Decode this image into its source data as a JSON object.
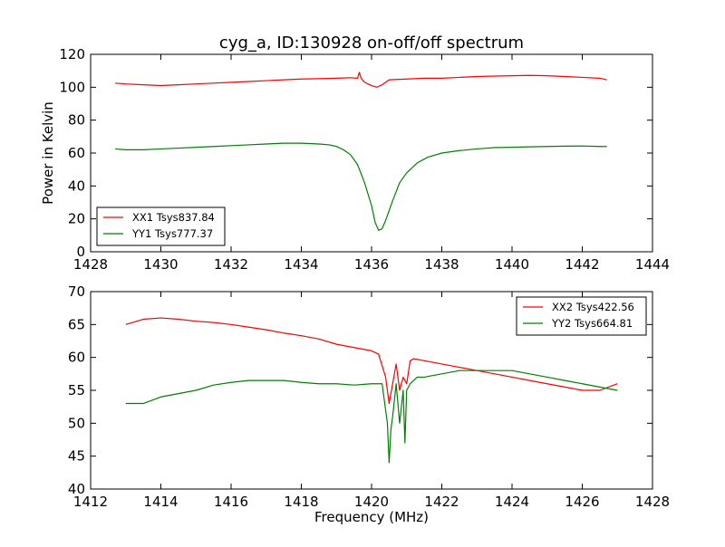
{
  "figure": {
    "title": "cyg_a, ID:130928 on-off/off spectrum",
    "background": "#ffffff"
  },
  "chart_data": [
    {
      "type": "line",
      "title": "cyg_a, ID:130928 on-off/off spectrum",
      "xlabel": "",
      "ylabel": "Power in Kelvin",
      "xlim": [
        1428,
        1444
      ],
      "ylim": [
        0,
        120
      ],
      "xticks": [
        1428,
        1430,
        1432,
        1434,
        1436,
        1438,
        1440,
        1442,
        1444
      ],
      "yticks": [
        0,
        20,
        40,
        60,
        80,
        100,
        120
      ],
      "grid": false,
      "legend_position": "lower-left",
      "series": [
        {
          "name": "XX1 Tsys837.84",
          "color": "#ff0000",
          "x": [
            1428.7,
            1429.0,
            1429.5,
            1430.0,
            1430.5,
            1431.0,
            1431.5,
            1432.0,
            1432.5,
            1433.0,
            1433.5,
            1434.0,
            1434.5,
            1435.0,
            1435.4,
            1435.6,
            1435.65,
            1435.7,
            1435.8,
            1436.0,
            1436.15,
            1436.3,
            1436.5,
            1437.0,
            1437.5,
            1438.0,
            1438.5,
            1439.0,
            1439.5,
            1440.0,
            1440.5,
            1441.0,
            1441.5,
            1442.0,
            1442.5,
            1442.7
          ],
          "y": [
            102.5,
            102,
            101.5,
            101,
            101.5,
            102,
            102.5,
            103,
            103.5,
            104,
            104.5,
            105,
            105.2,
            105.5,
            105.8,
            105.5,
            109,
            105.5,
            103,
            101,
            100,
            101.5,
            104.5,
            105,
            105.5,
            105.5,
            106,
            106.5,
            106.8,
            107,
            107.2,
            107,
            106.5,
            106,
            105.5,
            104.5
          ]
        },
        {
          "name": "YY1 Tsys777.37",
          "color": "#008000",
          "x": [
            1428.7,
            1429.0,
            1429.5,
            1430.0,
            1430.5,
            1431.0,
            1431.5,
            1432.0,
            1432.5,
            1433.0,
            1433.5,
            1434.0,
            1434.5,
            1434.8,
            1435.0,
            1435.2,
            1435.4,
            1435.6,
            1435.8,
            1436.0,
            1436.1,
            1436.2,
            1436.3,
            1436.4,
            1436.6,
            1436.8,
            1437.0,
            1437.3,
            1437.6,
            1438.0,
            1438.5,
            1439.0,
            1439.3,
            1439.5,
            1440.0,
            1440.5,
            1441.0,
            1441.5,
            1442.0,
            1442.5,
            1442.7
          ],
          "y": [
            62.5,
            62,
            62,
            62.5,
            63,
            63.5,
            64,
            64.5,
            65,
            65.5,
            66,
            66,
            65.5,
            65,
            64,
            62,
            59,
            53,
            42,
            28,
            18,
            13,
            14,
            19,
            31,
            42,
            48,
            54,
            57.5,
            60,
            61.5,
            62.5,
            63,
            63.3,
            63.5,
            63.8,
            64,
            64.2,
            64.3,
            64,
            64
          ]
        }
      ]
    },
    {
      "type": "line",
      "title": "",
      "xlabel": "Frequency (MHz)",
      "ylabel": "",
      "xlim": [
        1412,
        1428
      ],
      "ylim": [
        40,
        70
      ],
      "xticks": [
        1412,
        1414,
        1416,
        1418,
        1420,
        1422,
        1424,
        1426,
        1428
      ],
      "yticks": [
        40,
        45,
        50,
        55,
        60,
        65,
        70
      ],
      "grid": false,
      "legend_position": "upper-right",
      "series": [
        {
          "name": "XX2 Tsys422.56",
          "color": "#ff0000",
          "x": [
            1413.0,
            1413.5,
            1414.0,
            1414.5,
            1415.0,
            1415.5,
            1416.0,
            1416.5,
            1417.0,
            1417.5,
            1418.0,
            1418.5,
            1419.0,
            1419.5,
            1420.0,
            1420.2,
            1420.4,
            1420.5,
            1420.6,
            1420.7,
            1420.8,
            1420.9,
            1421.0,
            1421.1,
            1421.2,
            1421.5,
            1422.0,
            1422.5,
            1423.0,
            1423.5,
            1424.0,
            1424.5,
            1425.0,
            1425.5,
            1426.0,
            1426.5,
            1427.0
          ],
          "y": [
            65,
            65.8,
            66,
            65.8,
            65.5,
            65.3,
            65,
            64.6,
            64.2,
            63.7,
            63.3,
            62.8,
            62,
            61.5,
            61,
            60.5,
            57,
            53,
            56,
            59,
            55,
            57,
            56,
            59.5,
            59.8,
            59.5,
            59,
            58.5,
            58,
            57.5,
            57,
            56.5,
            56,
            55.5,
            55,
            55,
            56
          ]
        },
        {
          "name": "YY2 Tsys664.81",
          "color": "#008000",
          "x": [
            1413.0,
            1413.5,
            1414.0,
            1414.5,
            1415.0,
            1415.5,
            1416.0,
            1416.5,
            1417.0,
            1417.5,
            1418.0,
            1418.5,
            1419.0,
            1419.5,
            1420.0,
            1420.3,
            1420.45,
            1420.5,
            1420.55,
            1420.6,
            1420.7,
            1420.8,
            1420.9,
            1420.95,
            1421.0,
            1421.1,
            1421.3,
            1421.5,
            1422.0,
            1422.5,
            1423.0,
            1423.5,
            1424.0,
            1424.5,
            1425.0,
            1425.5,
            1426.0,
            1426.5,
            1427.0
          ],
          "y": [
            53,
            53,
            54,
            54.5,
            55,
            55.8,
            56.2,
            56.5,
            56.5,
            56.5,
            56.2,
            56,
            56,
            55.8,
            56,
            56,
            50,
            44,
            49,
            51,
            56,
            50,
            55,
            47,
            55,
            56,
            57,
            57,
            57.5,
            58,
            58,
            58,
            58,
            57.5,
            57,
            56.5,
            56,
            55.5,
            55
          ]
        }
      ]
    }
  ]
}
